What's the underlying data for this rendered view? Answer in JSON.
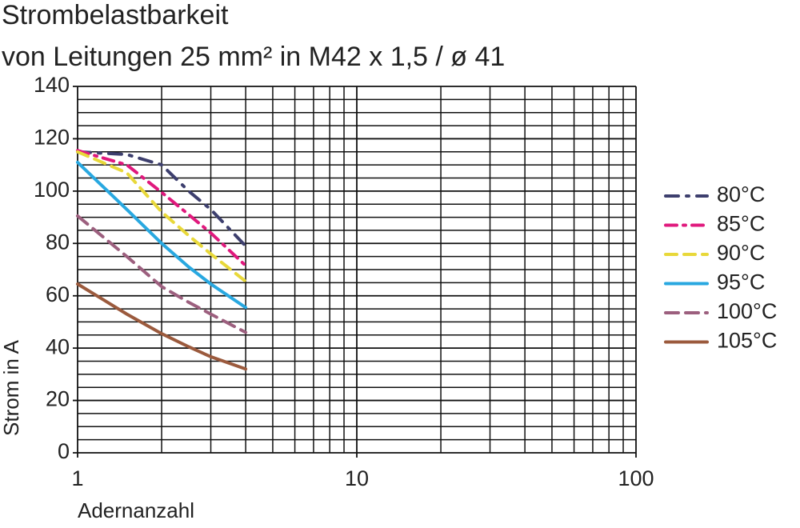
{
  "chart_data": {
    "type": "line",
    "title": "Strombelastbarkeit",
    "subtitle": "von Leitungen 25 mm² in M42 x 1,5 / ø 41",
    "xlabel": "Adernanzahl",
    "ylabel": "Strom in A",
    "xscale": "log",
    "grid": true,
    "xlim": [
      1,
      100
    ],
    "xticks": [
      1,
      10,
      100
    ],
    "xminorticks": [
      2,
      3,
      4,
      5,
      6,
      7,
      8,
      9,
      20,
      30,
      40,
      50,
      60,
      70,
      80,
      90
    ],
    "ylim": [
      0,
      140
    ],
    "yticks": [
      0,
      20,
      40,
      60,
      80,
      100,
      120,
      140
    ],
    "yminorticks": [
      5,
      10,
      15,
      25,
      30,
      35,
      45,
      50,
      55,
      65,
      70,
      75,
      85,
      90,
      95,
      105,
      110,
      115,
      125,
      130,
      135
    ],
    "legend": "right",
    "x": [
      1,
      1.5,
      2,
      2.5,
      3,
      4
    ],
    "series": [
      {
        "name": "80°C",
        "color": "#3d3f6e",
        "dash": "16 10 3 10",
        "values": [
          115,
          114,
          110,
          100,
          93,
          79
        ]
      },
      {
        "name": "85°C",
        "color": "#e0197d",
        "dash": "14 8 3 8",
        "values": [
          115.5,
          110,
          99.5,
          91,
          84,
          71.5
        ]
      },
      {
        "name": "90°C",
        "color": "#e8d83a",
        "dash": "14 9",
        "values": [
          115,
          107,
          92,
          83,
          76,
          65.5
        ]
      },
      {
        "name": "95°C",
        "color": "#29a8e0",
        "dash": "none",
        "values": [
          111,
          93,
          80,
          71,
          64.5,
          55.5
        ]
      },
      {
        "name": "100°C",
        "color": "#9c5f7e",
        "dash": "16 9",
        "values": [
          90.5,
          75,
          63.5,
          57.5,
          53,
          46
        ]
      },
      {
        "name": "105°C",
        "color": "#9b5a3d",
        "dash": "none",
        "values": [
          64.5,
          53,
          45.5,
          40.5,
          36.7,
          32
        ]
      }
    ]
  }
}
